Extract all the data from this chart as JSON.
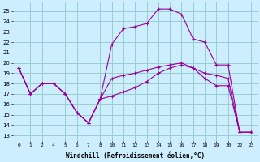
{
  "xlabel": "Windchill (Refroidissement éolien,°C)",
  "bg_color": "#cceeff",
  "grid_color": "#99cccc",
  "line_color": "#990099",
  "x_labels": [
    "0",
    "1",
    "2",
    "4",
    "5",
    "6",
    "7",
    "8",
    "10",
    "11",
    "12",
    "13",
    "14",
    "15",
    "16",
    "17",
    "18",
    "19",
    "20",
    "22",
    "23"
  ],
  "y_ticks": [
    13,
    14,
    15,
    16,
    17,
    18,
    19,
    20,
    21,
    22,
    23,
    24,
    25
  ],
  "ylim": [
    12.5,
    25.8
  ],
  "line1_y": [
    19.5,
    17.0,
    18.0,
    18.0,
    17.0,
    15.2,
    14.2,
    16.5,
    16.8,
    17.2,
    17.6,
    18.2,
    19.0,
    19.5,
    19.8,
    19.5,
    18.5,
    17.8,
    17.8,
    13.3,
    13.3
  ],
  "line2_y": [
    19.5,
    17.0,
    18.0,
    18.0,
    17.0,
    15.2,
    14.2,
    16.5,
    21.8,
    23.3,
    23.5,
    23.8,
    25.2,
    25.2,
    24.7,
    22.3,
    22.0,
    19.8,
    19.8,
    13.3,
    13.3
  ],
  "line3_y": [
    19.5,
    17.0,
    18.0,
    18.0,
    17.0,
    15.2,
    14.2,
    16.5,
    18.5,
    18.8,
    19.0,
    19.3,
    19.6,
    19.8,
    20.0,
    19.5,
    19.0,
    18.8,
    18.5,
    13.3,
    13.3
  ]
}
